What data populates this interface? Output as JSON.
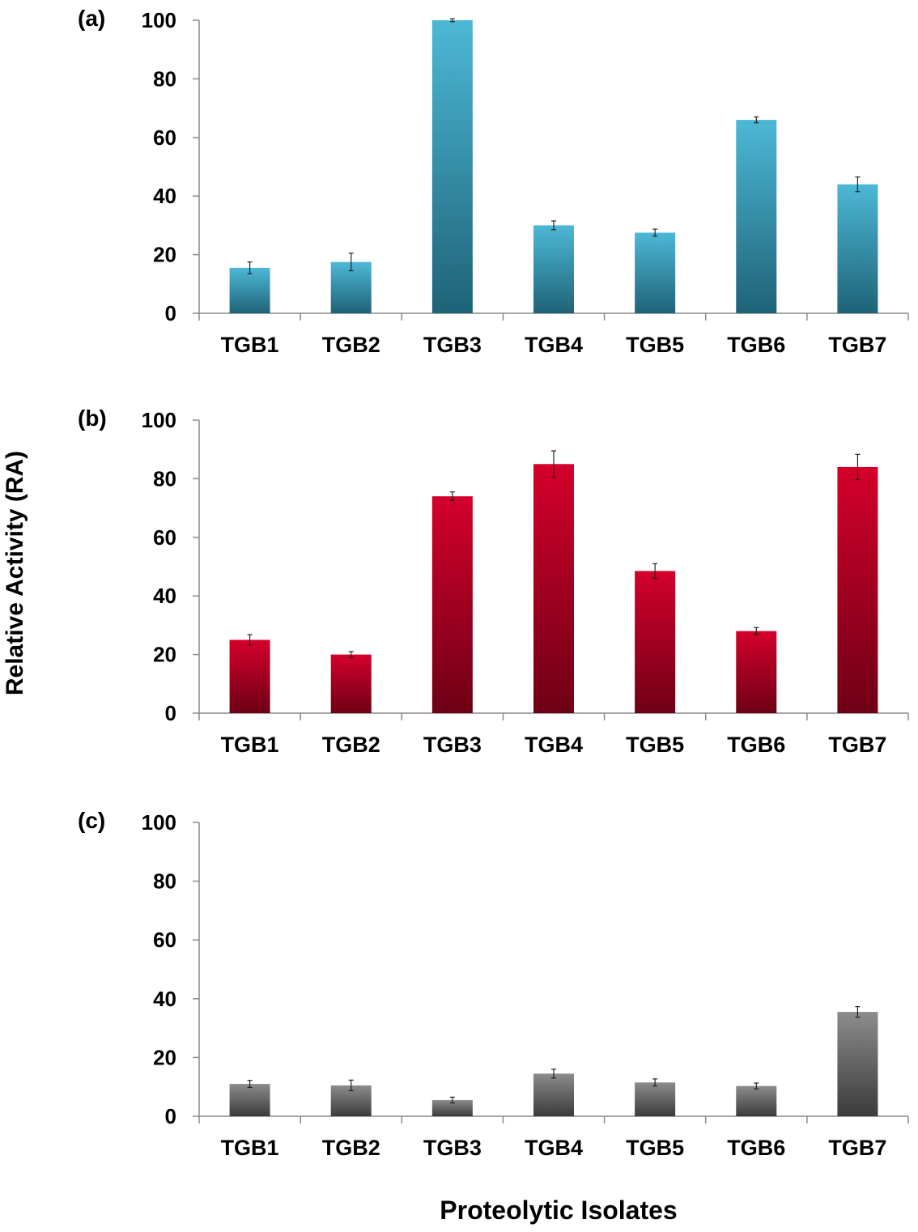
{
  "figure": {
    "ylabel": "Relative Activity (RA)",
    "xlabel": "Proteolytic Isolates"
  },
  "colors": {
    "a_top": "#4db8d6",
    "a_bottom": "#1e6377",
    "b_top": "#d4002b",
    "b_bottom": "#6e0015",
    "c_top": "#8c8c8c",
    "c_bottom": "#3b3b3b"
  },
  "chart_data": [
    {
      "type": "bar",
      "panel": "(a)",
      "categories": [
        "TGB1",
        "TGB2",
        "TGB3",
        "TGB4",
        "TGB5",
        "TGB6",
        "TGB7"
      ],
      "values": [
        15.5,
        17.5,
        100,
        30,
        27.5,
        66,
        44
      ],
      "errors": [
        2,
        3,
        0.5,
        1.5,
        1.2,
        1,
        2.5
      ],
      "ylim": [
        0,
        100
      ],
      "yticks": [
        0,
        20,
        40,
        60,
        80,
        100
      ],
      "xlabel": "Proteolytic Isolates",
      "ylabel": "Relative Activity (RA)"
    },
    {
      "type": "bar",
      "panel": "(b)",
      "categories": [
        "TGB1",
        "TGB2",
        "TGB3",
        "TGB4",
        "TGB5",
        "TGB6",
        "TGB7"
      ],
      "values": [
        25,
        20,
        74,
        85,
        48.5,
        28,
        84
      ],
      "errors": [
        1.8,
        1,
        1.5,
        4.5,
        2.5,
        1.2,
        4.3
      ],
      "ylim": [
        0,
        100
      ],
      "yticks": [
        0,
        20,
        40,
        60,
        80,
        100
      ],
      "xlabel": "Proteolytic Isolates",
      "ylabel": "Relative Activity (RA)"
    },
    {
      "type": "bar",
      "panel": "(c)",
      "categories": [
        "TGB1",
        "TGB2",
        "TGB3",
        "TGB4",
        "TGB5",
        "TGB6",
        "TGB7"
      ],
      "values": [
        11,
        10.5,
        5.5,
        14.5,
        11.5,
        10.3,
        35.5
      ],
      "errors": [
        1.2,
        1.8,
        1,
        1.5,
        1.2,
        1,
        1.8
      ],
      "ylim": [
        0,
        100
      ],
      "yticks": [
        0,
        20,
        40,
        60,
        80,
        100
      ],
      "xlabel": "Proteolytic Isolates",
      "ylabel": "Relative Activity (RA)"
    }
  ]
}
